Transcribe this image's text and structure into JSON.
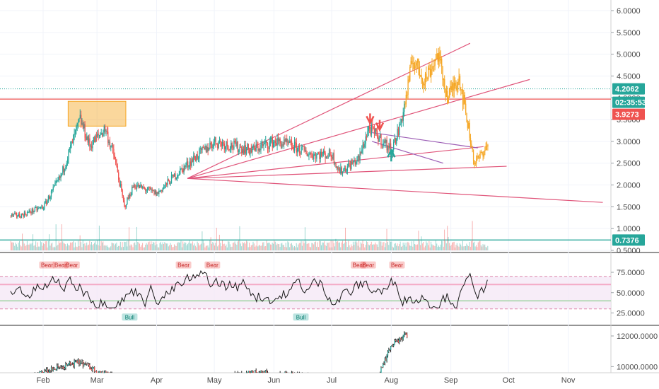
{
  "chart_data": {
    "type": "candlestick",
    "title": "",
    "price_pane": {
      "y_ticks": [
        "6.0000",
        "5.5000",
        "5.0000",
        "4.5000",
        "4.0000",
        "3.5000",
        "3.0000",
        "2.5000",
        "2.0000",
        "1.5000",
        "1.0000",
        "0.5000"
      ],
      "ylim": [
        0.5,
        6.0
      ],
      "series": [
        {
          "name": "",
          "color": "#26a69a",
          "color_down": "#ef5350",
          "x": [
            "Jan 20",
            "Feb 1",
            "Feb 10",
            "Feb 20",
            "Feb 25",
            "Mar 5",
            "Mar 10",
            "Mar 15",
            "Mar 20",
            "Apr 1",
            "Apr 10",
            "Apr 20",
            "May 1",
            "May 10",
            "May 20",
            "Jun 1",
            "Jun 10",
            "Jun 20",
            "Jul 1",
            "Jul 5",
            "Jul 15",
            "Jul 20",
            "Jul 25",
            "Aug 1",
            "Aug 5",
            "Aug 8"
          ],
          "close": [
            1.3,
            1.5,
            2.2,
            3.5,
            2.9,
            3.3,
            2.6,
            1.5,
            2.0,
            1.8,
            2.2,
            2.6,
            3.0,
            2.9,
            2.8,
            3.0,
            2.9,
            2.7,
            2.7,
            2.3,
            2.6,
            3.3,
            3.1,
            2.8,
            3.3,
            3.9
          ]
        },
        {
          "name": "",
          "color": "#f5a623",
          "x": [
            "Aug 8",
            "Aug 12",
            "Aug 18",
            "Aug 25",
            "Aug 30",
            "Sep 5",
            "Sep 10",
            "Sep 13",
            "Sep 15",
            "Sep 18",
            "Sep 20"
          ],
          "close": [
            3.9,
            4.9,
            4.4,
            5.0,
            4.0,
            4.5,
            3.3,
            2.5,
            2.6,
            2.8,
            2.9
          ]
        }
      ],
      "price_badges": [
        {
          "label": "4.2062",
          "value": 4.2062,
          "color": "#26a69a"
        },
        {
          "label": "02:35:53",
          "value": 3.9927,
          "color": "#26a69a"
        },
        {
          "label": "3.9273",
          "value": 3.9273,
          "color": "#ef5350"
        },
        {
          "label": "0.7376",
          "value": 0.7376,
          "color": "#26a69a"
        }
      ],
      "arrows": [
        {
          "direction": "down",
          "x": "Jul 21",
          "y": 3.35
        },
        {
          "direction": "down",
          "x": "Jul 26",
          "y": 3.2
        },
        {
          "direction": "up",
          "x": "Aug 1",
          "y": 2.8
        }
      ]
    },
    "oscillator_pane": {
      "y_ticks": [
        "75.0000",
        "50.0000",
        "25.0000"
      ],
      "ylim": [
        15,
        95
      ],
      "levels": [
        70,
        60,
        40,
        30
      ],
      "signals": [
        {
          "label": "Bear",
          "x": "Feb 3"
        },
        {
          "label": "Bear",
          "x": "Feb 10"
        },
        {
          "label": "Bear",
          "x": "Feb 16"
        },
        {
          "label": "Bear",
          "x": "Apr 15"
        },
        {
          "label": "Bear",
          "x": "Apr 30"
        },
        {
          "label": "Bear",
          "x": "Jul 15"
        },
        {
          "label": "Bear",
          "x": "Jul 20"
        },
        {
          "label": "Bear",
          "x": "Aug 4"
        },
        {
          "label": "Bull",
          "x": "Mar 18"
        },
        {
          "label": "Bull",
          "x": "Jun 15"
        }
      ]
    },
    "volume_pane": {
      "y_ticks": [
        "12000.0000",
        "10000.0000"
      ],
      "ylim": [
        9000,
        12600
      ]
    },
    "x_ticks": [
      "Feb",
      "Mar",
      "Apr",
      "May",
      "Jun",
      "Jul",
      "Aug",
      "Sep",
      "Oct",
      "Nov"
    ],
    "x_range": [
      "Jan 15",
      "Nov 30"
    ]
  },
  "colors": {
    "up": "#26a69a",
    "down": "#ef5350",
    "highlight": "#f5a623",
    "trendline": "#e0557a",
    "band_fill": "#f3e5f5"
  }
}
